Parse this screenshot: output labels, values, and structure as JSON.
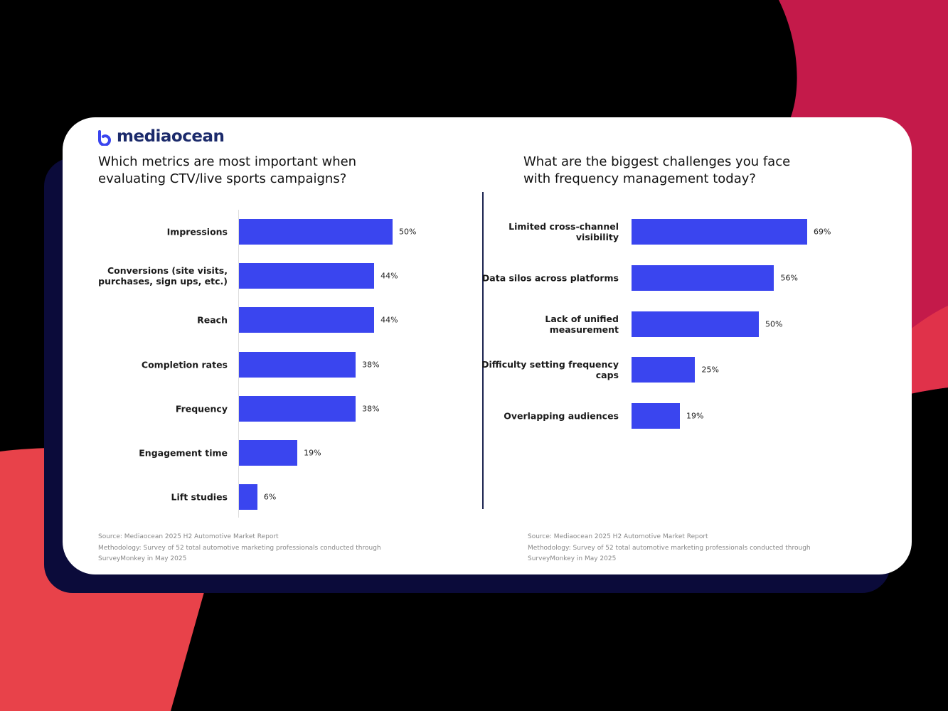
{
  "brand": "mediaocean",
  "chart_data": [
    {
      "type": "bar",
      "orientation": "horizontal",
      "title": "Which metrics are most important when evaluating CTV/live sports campaigns?",
      "categories": [
        "Impressions",
        "Conversions (site visits, purchases, sign ups, etc.)",
        "Reach",
        "Completion rates",
        "Frequency",
        "Engagement time",
        "Lift studies"
      ],
      "values": [
        50,
        44,
        44,
        38,
        38,
        19,
        6
      ],
      "value_labels": [
        "50%",
        "44%",
        "44%",
        "38%",
        "38%",
        "19%",
        "6%"
      ],
      "color": "#3a45ef",
      "notes": [
        "Source: Mediaocean 2025 H2 Automotive Market Report",
        "Methodology: Survey of 52 total automotive marketing professionals conducted through",
        "SurveyMonkey in May 2025"
      ]
    },
    {
      "type": "bar",
      "orientation": "horizontal",
      "title": "What are the biggest challenges you face with frequency management today?",
      "categories": [
        "Limited cross-channel visibility",
        "Data silos across platforms",
        "Lack of unified measurement",
        "Difficulty setting frequency caps",
        "Overlapping audiences"
      ],
      "values": [
        69,
        56,
        50,
        25,
        19
      ],
      "value_labels": [
        "69%",
        "56%",
        "50%",
        "25%",
        "19%"
      ],
      "color": "#3a45ef",
      "notes": [
        "Source: Mediaocean 2025 H2 Automotive Market Report",
        "Methodology: Survey of 52 total automotive marketing professionals conducted through",
        "SurveyMonkey in May 2025"
      ]
    }
  ]
}
